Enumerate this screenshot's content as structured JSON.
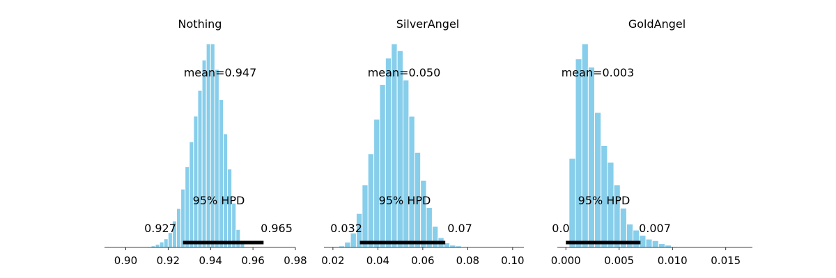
{
  "chart_data": [
    {
      "type": "bar",
      "title": "Nothing",
      "xlim": [
        0.89,
        0.98
      ],
      "xticks": [
        0.9,
        0.92,
        0.94,
        0.96,
        0.98
      ],
      "xtick_labels": [
        "0.90",
        "0.92",
        "0.94",
        "0.96",
        "0.98"
      ],
      "bin_start": 0.91,
      "bin_width": 0.002,
      "counts": [
        1,
        2,
        4,
        7,
        11,
        19,
        34,
        50,
        75,
        104,
        136,
        169,
        202,
        241,
        262,
        262,
        229,
        190,
        146,
        101,
        57,
        23,
        7
      ],
      "mean_label": "mean=0.947",
      "hpd_label": "95% HPD",
      "hpd": [
        0.927,
        0.965
      ],
      "hpd_low_label": "0.927",
      "hpd_high_label": "0.965"
    },
    {
      "type": "bar",
      "title": "SilverAngel",
      "xlim": [
        0.016,
        0.105
      ],
      "xticks": [
        0.02,
        0.04,
        0.06,
        0.08,
        0.1
      ],
      "xtick_labels": [
        "0.02",
        "0.04",
        "0.06",
        "0.08",
        "0.10"
      ],
      "bin_start": 0.02,
      "bin_width": 0.0026,
      "counts": [
        1,
        2,
        7,
        19,
        45,
        83,
        124,
        170,
        216,
        251,
        270,
        261,
        222,
        174,
        126,
        89,
        53,
        28,
        13,
        6,
        3,
        2
      ],
      "mean_label": "mean=0.050",
      "hpd_label": "95% HPD",
      "hpd": [
        0.032,
        0.07
      ],
      "hpd_low_label": "0.032",
      "hpd_high_label": "0.07"
    },
    {
      "type": "bar",
      "title": "GoldAngel",
      "xlim": [
        -0.0008,
        0.0175
      ],
      "xticks": [
        0.0,
        0.005,
        0.01,
        0.015
      ],
      "xtick_labels": [
        "0.000",
        "0.005",
        "0.010",
        "0.015"
      ],
      "bin_start": 0.0003,
      "bin_width": 0.0006,
      "counts": [
        118,
        250,
        270,
        239,
        179,
        135,
        113,
        83,
        52,
        31,
        23,
        16,
        11,
        9,
        5,
        3,
        1
      ],
      "mean_label": "mean=0.003",
      "hpd_label": "95% HPD",
      "hpd": [
        0.0,
        0.007
      ],
      "hpd_low_label": "0.0",
      "hpd_high_label": "0.007"
    }
  ]
}
